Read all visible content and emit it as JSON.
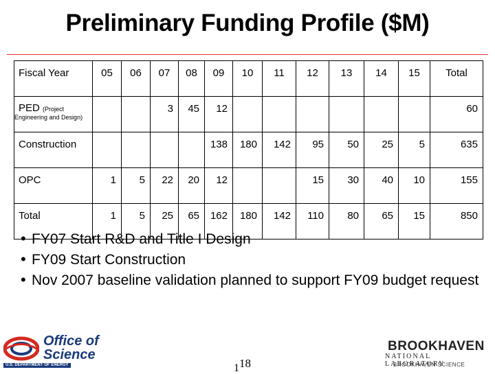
{
  "title": "Preliminary Funding Profile ($M)",
  "table": {
    "header": [
      "Fiscal Year",
      "05",
      "06",
      "07",
      "08",
      "09",
      "10",
      "11",
      "12",
      "13",
      "14",
      "15",
      "Total"
    ],
    "rows": [
      {
        "label": "PED",
        "label_small": "(Project",
        "label_sub": "Engineering and Design)",
        "cells": [
          "",
          "",
          "3",
          "45",
          "12",
          "",
          "",
          "",
          "",
          "",
          "",
          "60"
        ]
      },
      {
        "label": "Construction",
        "cells": [
          "",
          "",
          "",
          "",
          "138",
          "180",
          "142",
          "95",
          "50",
          "25",
          "5",
          "635"
        ]
      },
      {
        "label": "OPC",
        "cells": [
          "1",
          "5",
          "22",
          "20",
          "12",
          "",
          "",
          "15",
          "30",
          "40",
          "10",
          "155"
        ]
      },
      {
        "label": "Total",
        "cells": [
          "1",
          "5",
          "25",
          "65",
          "162",
          "180",
          "142",
          "110",
          "80",
          "65",
          "15",
          "850"
        ]
      }
    ]
  },
  "bullets": [
    "FY07 Start R&D and Title I Design",
    "FY09 Start Construction",
    "Nov 2007 baseline validation planned to support FY09 budget request"
  ],
  "footer": {
    "doe_logo_line1": "Office of",
    "doe_logo_line2": "Science",
    "doe_logo_sub": "U.S. DEPARTMENT OF ENERGY",
    "page_number_a": "1",
    "page_number_b": "18",
    "bnl_name": "BROOKHAVEN",
    "bnl_lab": "NATIONAL LABORATORY",
    "bnl_assoc": "BROOKHAVEN SCIENCE"
  },
  "colors": {
    "rule": "#e03030",
    "doe_blue": "#1a3a7c",
    "doe_red": "#d42a20"
  }
}
